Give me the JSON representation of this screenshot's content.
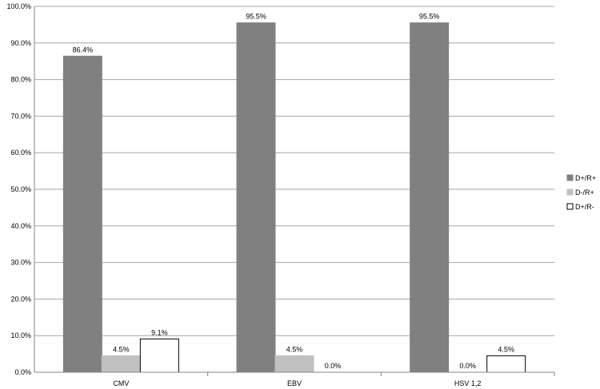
{
  "chart_data": {
    "type": "bar",
    "categories": [
      "CMV",
      "EBV",
      "HSV 1,2"
    ],
    "series": [
      {
        "name": "D+/R+",
        "values": [
          86.4,
          95.5,
          95.5
        ],
        "labels": [
          "86.4%",
          "95.5%",
          "95.5%"
        ],
        "color": "#808080",
        "stroke": "#808080"
      },
      {
        "name": "D-/R+",
        "values": [
          4.5,
          4.5,
          0.0
        ],
        "labels": [
          "4.5%",
          "4.5%",
          "0.0%"
        ],
        "color": "#c0c0c0",
        "stroke": "#c0c0c0"
      },
      {
        "name": "D+/R-",
        "values": [
          9.1,
          0.0,
          4.5
        ],
        "labels": [
          "9.1%",
          "0.0%",
          "4.5%"
        ],
        "color": "#ffffff",
        "stroke": "#000000"
      }
    ],
    "ylim": [
      0,
      100
    ],
    "yticks": [
      0,
      10,
      20,
      30,
      40,
      50,
      60,
      70,
      80,
      90,
      100
    ],
    "ytick_labels": [
      "0.0%",
      "10.0%",
      "20.0%",
      "30.0%",
      "40.0%",
      "50.0%",
      "60.0%",
      "70.0%",
      "80.0%",
      "90.0%",
      "100.0%"
    ],
    "grid": true,
    "legend_position": "right",
    "title": "",
    "xlabel": "",
    "ylabel": ""
  }
}
